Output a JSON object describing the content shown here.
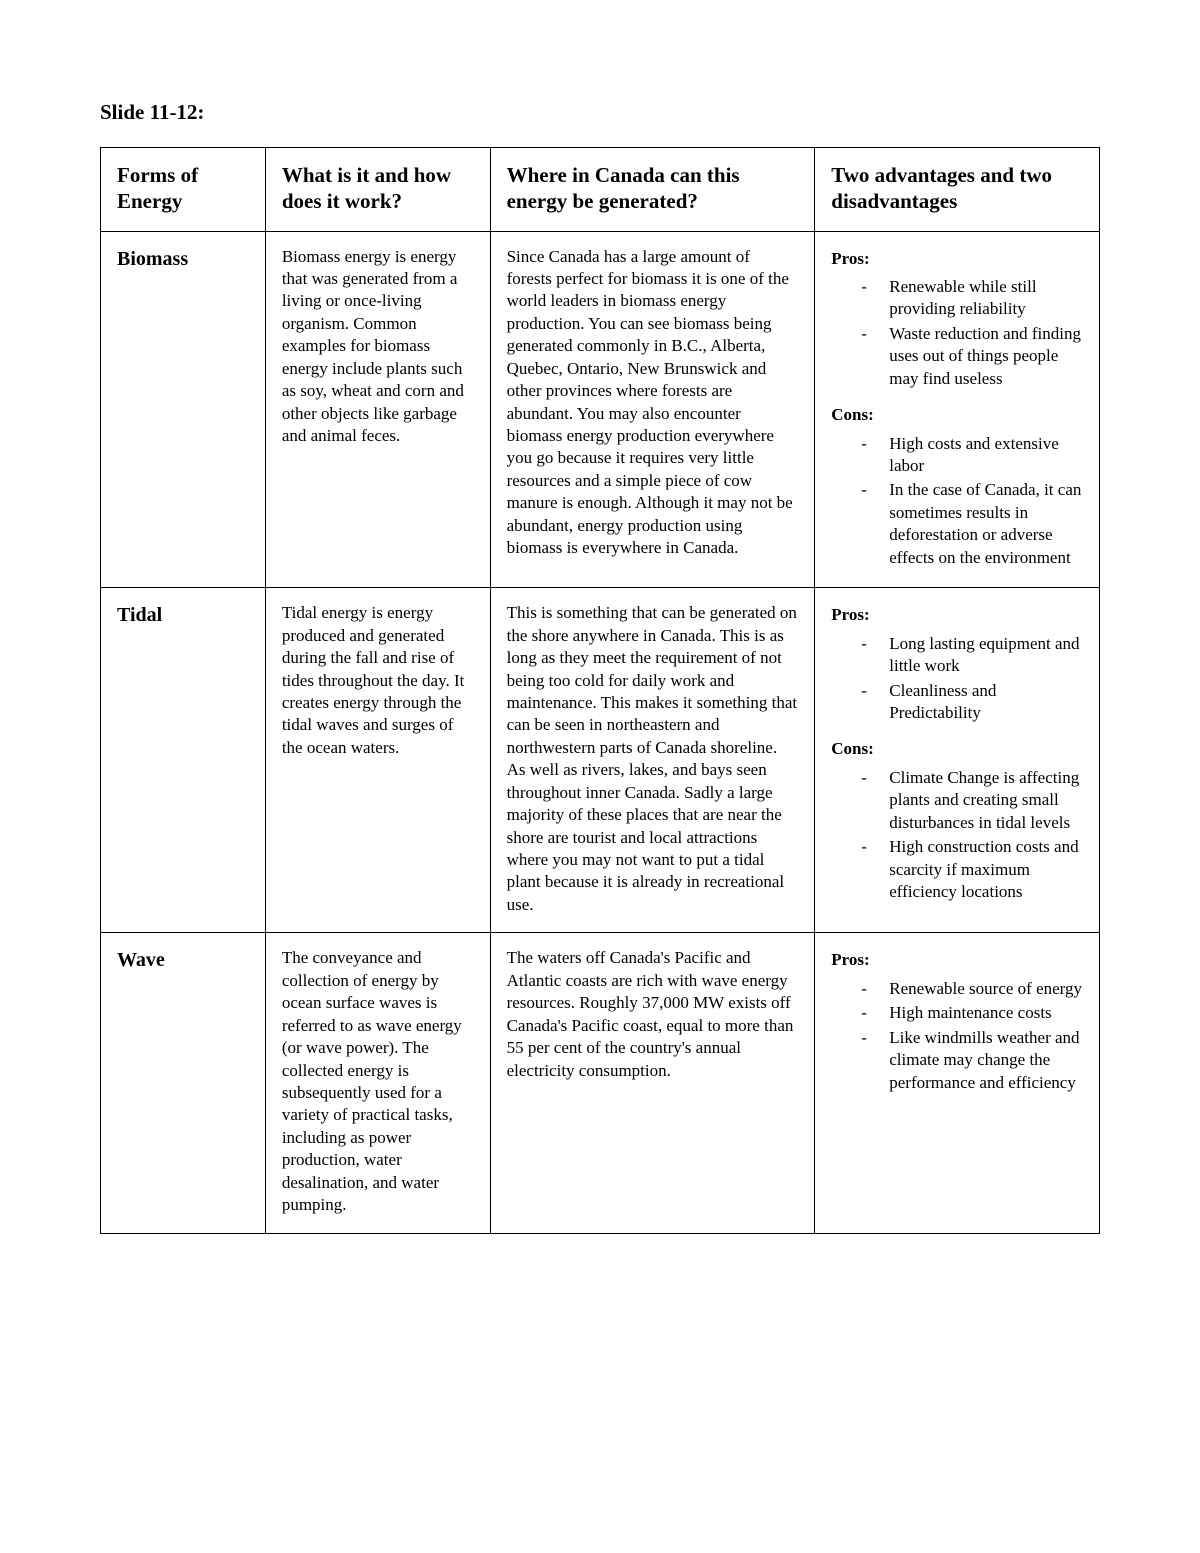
{
  "title": "Slide 11-12:",
  "headers": {
    "form": "Forms of Energy",
    "what": "What is it and how does it work?",
    "where": "Where in Canada can this energy be generated?",
    "adv": "Two advantages and two disadvantages"
  },
  "labels": {
    "pros": "Pros:",
    "cons": "Cons:"
  },
  "rows": [
    {
      "name": "Biomass",
      "what": "Biomass energy is energy that was generated from a living or once-living organism. Common examples for biomass energy include plants such as soy, wheat and corn and other objects like garbage and animal feces.",
      "where": "Since Canada has a large amount of forests perfect for biomass it is one of the world leaders in biomass energy production. You can see biomass being generated commonly in B.C., Alberta, Quebec, Ontario, New Brunswick and other provinces where forests are abundant. You may also encounter biomass energy production everywhere you go because it requires very little resources and a simple piece of cow manure is enough. Although it may not be abundant, energy production using biomass is everywhere in Canada.",
      "pros": [
        "Renewable while still providing reliability",
        "Waste reduction and finding uses out of things people may find useless"
      ],
      "cons": [
        "High costs and extensive labor",
        "In the case of Canada, it can sometimes results in deforestation or adverse effects on the environment"
      ]
    },
    {
      "name": "Tidal",
      "what": "Tidal energy is energy produced and generated during the fall and rise of tides throughout the day. It creates energy through the tidal waves and surges of the ocean waters.",
      "where": "This is something that can be generated on the shore anywhere in Canada. This is as long as they meet the requirement of not being too cold for daily work and maintenance. This makes it something that can be seen in northeastern and northwestern parts of Canada shoreline. As well as rivers, lakes, and bays seen throughout inner Canada. Sadly a large majority of these places that are near the shore are tourist and local attractions where you may not want to put a tidal plant because it is already in recreational use.",
      "pros": [
        "Long lasting equipment and little work",
        "Cleanliness and Predictability"
      ],
      "cons": [
        "Climate Change is affecting plants and creating small disturbances in tidal levels",
        "High construction costs and scarcity if maximum efficiency locations"
      ]
    },
    {
      "name": "Wave",
      "what": "The conveyance and collection of energy by ocean surface waves is referred to as wave energy (or wave power). The collected energy is subsequently used for a variety of practical tasks, including as power production, water desalination, and water pumping.",
      "where": "The waters off Canada's Pacific and Atlantic coasts are rich with wave energy resources. Roughly 37,000 MW exists off Canada's Pacific coast, equal to more than 55 per cent of the country's annual electricity consumption.",
      "pros": [
        "Renewable source of energy",
        "High maintenance costs",
        "Like windmills weather and climate may change the performance and efficiency"
      ],
      "cons": []
    }
  ]
}
